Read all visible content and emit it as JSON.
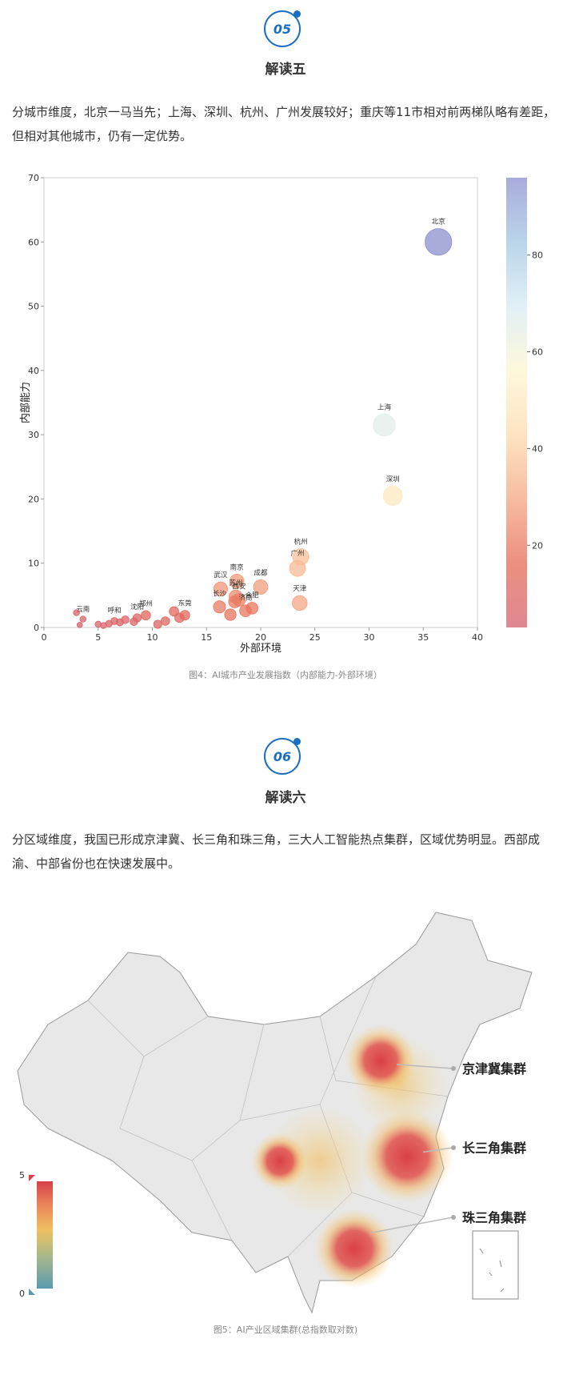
{
  "sections": [
    {
      "badge": "05",
      "heading": "解读五",
      "paragraph": "分城市维度，北京一马当先；上海、深圳、杭州、广州发展较好；重庆等11市相对前两梯队略有差距，但相对其他城市，仍有一定优势。",
      "caption": "图4：AI城市产业发展指数（内部能力-外部环境）"
    },
    {
      "badge": "06",
      "heading": "解读六",
      "paragraph": "分区域维度，我国已形成京津冀、长三角和珠三角，三大人工智能热点集群，区域优势明显。西部成渝、中部省份也在快速发展中。",
      "caption": "图5：AI产业区域集群(总指数取对数)"
    }
  ],
  "chart_data": {
    "type": "scatter",
    "xlabel": "外部环境",
    "ylabel": "内部能力",
    "xlim": [
      0,
      40
    ],
    "ylim": [
      0,
      70
    ],
    "xticks": [
      0,
      5,
      10,
      15,
      20,
      25,
      30,
      35,
      40
    ],
    "yticks": [
      0,
      10,
      20,
      30,
      40,
      50,
      60,
      70
    ],
    "clim": [
      3,
      96
    ],
    "cticks": [
      20,
      40,
      60,
      80
    ],
    "colorscale": [
      "#d4606e",
      "#e66a55",
      "#f4a582",
      "#fddbae",
      "#fdf6d0",
      "#d7ebf3",
      "#a3c6e2",
      "#8c8fcf"
    ],
    "series": [
      {
        "names": [
          "北京",
          "上海",
          "深圳",
          "杭州",
          "广州",
          "天津",
          "成都",
          "南京",
          "武汉",
          "苏州",
          "西安",
          "长沙",
          "济南",
          "合肥",
          "郑州",
          "东莞",
          "沈阳",
          "呼和",
          "云南",
          null,
          null,
          null,
          null,
          null,
          null,
          null,
          null,
          null,
          null,
          null,
          null,
          null,
          null
        ],
        "x": [
          36.4,
          31.4,
          32.2,
          23.7,
          23.4,
          23.6,
          20.0,
          17.8,
          16.3,
          17.7,
          18.0,
          16.2,
          18.6,
          19.2,
          9.4,
          13.0,
          8.6,
          6.5,
          3.6,
          3.0,
          3.3,
          5.0,
          5.5,
          6.0,
          7.0,
          7.5,
          8.3,
          10.5,
          11.2,
          12.0,
          12.5,
          17.2,
          17.6
        ],
        "y": [
          60,
          31.5,
          20.5,
          11,
          9.2,
          3.8,
          6.3,
          7.2,
          6.0,
          4.8,
          4.3,
          3.2,
          2.6,
          3.0,
          1.9,
          1.9,
          1.5,
          1.0,
          1.3,
          2.3,
          0.4,
          0.5,
          0.3,
          0.6,
          0.8,
          1.2,
          0.9,
          0.5,
          1.0,
          2.5,
          1.5,
          2.0,
          4.0
        ],
        "index": [
          96,
          66,
          50,
          36,
          35,
          30,
          28,
          27,
          26,
          24,
          22,
          20,
          19,
          19,
          12,
          13,
          9,
          7,
          5,
          5,
          4,
          5,
          5,
          6,
          7,
          8,
          8,
          9,
          10,
          12,
          12,
          18,
          20
        ]
      }
    ]
  },
  "map": {
    "labels": [
      "京津冀集群",
      "长三角集群",
      "珠三角集群"
    ],
    "legend_ticks": [
      0,
      5
    ]
  }
}
